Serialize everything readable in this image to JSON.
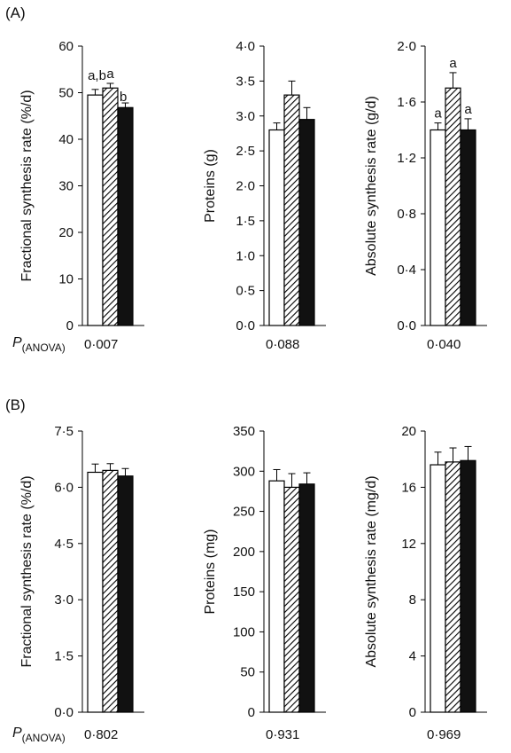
{
  "panels": [
    {
      "label": "(A)",
      "p_label": "P",
      "p_subscript": "(ANOVA)",
      "charts": [
        {
          "ylabel": "Fractional synthesis rate (%/d)",
          "ticks": [
            "0",
            "10",
            "20",
            "30",
            "40",
            "50",
            "60"
          ],
          "p_value": "0·007"
        },
        {
          "ylabel": "Proteins (g)",
          "ticks": [
            "0·0",
            "0·5",
            "1·0",
            "1·5",
            "2·0",
            "2·5",
            "3·0",
            "3·5",
            "4·0"
          ],
          "p_value": "0·088"
        },
        {
          "ylabel": "Absolute synthesis rate (g/d)",
          "ticks": [
            "0·0",
            "0·4",
            "0·8",
            "1·2",
            "1·6",
            "2·0"
          ],
          "p_value": "0·040"
        }
      ]
    },
    {
      "label": "(B)",
      "p_label": "P",
      "p_subscript": "(ANOVA)",
      "charts": [
        {
          "ylabel": "Fractional synthesis rate (%/d)",
          "ticks": [
            "0·0",
            "1·5",
            "3·0",
            "4·5",
            "6·0",
            "7·5"
          ],
          "p_value": "0·802"
        },
        {
          "ylabel": "Proteins (mg)",
          "ticks": [
            "0",
            "50",
            "100",
            "150",
            "200",
            "250",
            "300",
            "350"
          ],
          "p_value": "0·931"
        },
        {
          "ylabel": "Absolute synthesis rate (mg/d)",
          "ticks": [
            "0",
            "4",
            "8",
            "12",
            "16",
            "20"
          ],
          "p_value": "0·969"
        }
      ]
    }
  ],
  "chart_data": [
    {
      "type": "bar",
      "panel": "(A)",
      "ylabel": "Fractional synthesis rate (%/d)",
      "ylim": [
        0,
        60
      ],
      "bar_styles": [
        "white",
        "hatched",
        "black"
      ],
      "values": [
        49.5,
        51.0,
        46.8
      ],
      "errors": [
        1.2,
        1.0,
        1.0
      ],
      "annotations": [
        "a,b",
        "a",
        "b"
      ],
      "p_anova": "0·007"
    },
    {
      "type": "bar",
      "panel": "(A)",
      "ylabel": "Proteins (g)",
      "ylim": [
        0,
        4.0
      ],
      "bar_styles": [
        "white",
        "hatched",
        "black"
      ],
      "values": [
        2.8,
        3.3,
        2.95
      ],
      "errors": [
        0.1,
        0.2,
        0.17
      ],
      "annotations": [
        "",
        "",
        ""
      ],
      "p_anova": "0·088"
    },
    {
      "type": "bar",
      "panel": "(A)",
      "ylabel": "Absolute synthesis rate (g/d)",
      "ylim": [
        0,
        2.0
      ],
      "bar_styles": [
        "white",
        "hatched",
        "black"
      ],
      "values": [
        1.4,
        1.7,
        1.4
      ],
      "errors": [
        0.05,
        0.11,
        0.08
      ],
      "annotations": [
        "a",
        "a",
        "a"
      ],
      "p_anova": "0·040"
    },
    {
      "type": "bar",
      "panel": "(B)",
      "ylabel": "Fractional synthesis rate (%/d)",
      "ylim": [
        0,
        7.5
      ],
      "bar_styles": [
        "white",
        "hatched",
        "black"
      ],
      "values": [
        6.4,
        6.45,
        6.3
      ],
      "errors": [
        0.22,
        0.18,
        0.2
      ],
      "annotations": [
        "",
        "",
        ""
      ],
      "p_anova": "0·802"
    },
    {
      "type": "bar",
      "panel": "(B)",
      "ylabel": "Proteins (mg)",
      "ylim": [
        0,
        350
      ],
      "bar_styles": [
        "white",
        "hatched",
        "black"
      ],
      "values": [
        288,
        280,
        284
      ],
      "errors": [
        14,
        17,
        14
      ],
      "annotations": [
        "",
        "",
        ""
      ],
      "p_anova": "0·931"
    },
    {
      "type": "bar",
      "panel": "(B)",
      "ylabel": "Absolute synthesis rate (mg/d)",
      "ylim": [
        0,
        20
      ],
      "bar_styles": [
        "white",
        "hatched",
        "black"
      ],
      "values": [
        17.6,
        17.8,
        17.9
      ],
      "errors": [
        0.9,
        1.0,
        1.0
      ],
      "annotations": [
        "",
        "",
        ""
      ],
      "p_anova": "0·969"
    }
  ]
}
